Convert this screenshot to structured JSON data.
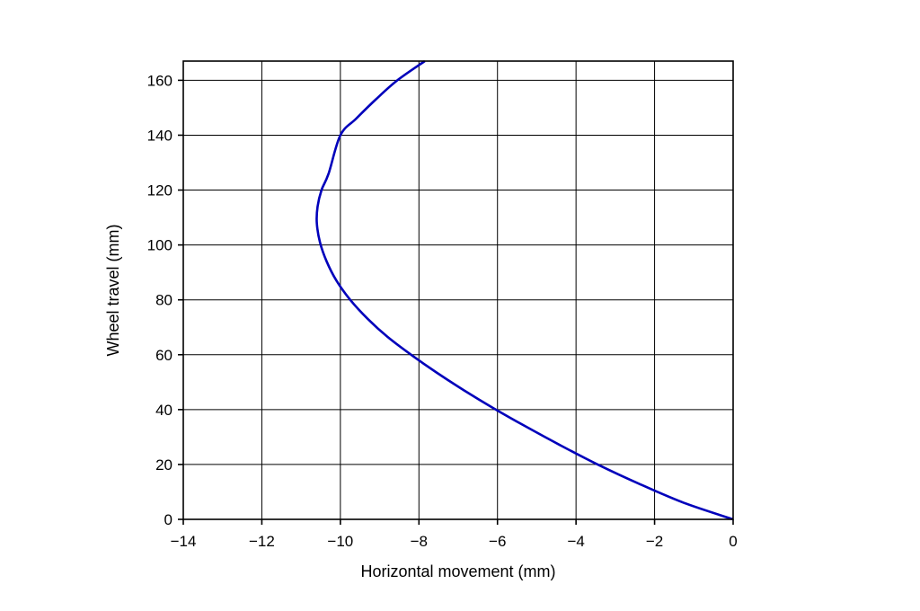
{
  "chart_data": {
    "type": "line",
    "xlabel": "Horizontal movement (mm)",
    "ylabel": "Wheel travel (mm)",
    "xlim": [
      -14,
      0
    ],
    "ylim": [
      0,
      167
    ],
    "xticks": [
      -14,
      -12,
      -10,
      -8,
      -6,
      -4,
      -2,
      0
    ],
    "xtick_labels": [
      "−14",
      "−12",
      "−10",
      "−8",
      "−6",
      "−4",
      "−2",
      "0"
    ],
    "yticks": [
      0,
      20,
      40,
      60,
      80,
      100,
      120,
      140,
      160
    ],
    "ytick_labels": [
      "0",
      "20",
      "40",
      "60",
      "80",
      "100",
      "120",
      "140",
      "160"
    ],
    "grid": true,
    "series": [
      {
        "color": "#0000bb",
        "x": [
          0,
          -1.25,
          -2.4,
          -3.45,
          -4.4,
          -5.3,
          -6.1,
          -6.85,
          -7.55,
          -8.2,
          -8.8,
          -9.3,
          -9.75,
          -10.1,
          -10.35,
          -10.52,
          -10.6,
          -10.58,
          -10.48,
          -10.3,
          -10.0,
          -9.6,
          -9.1,
          -8.55,
          -7.85
        ],
        "y": [
          0,
          6,
          13,
          20,
          27,
          34,
          40.5,
          47,
          53.5,
          60,
          66.5,
          73,
          80,
          87,
          94,
          101,
          108,
          114,
          120,
          126,
          140,
          146,
          153,
          160,
          167
        ]
      }
    ]
  }
}
